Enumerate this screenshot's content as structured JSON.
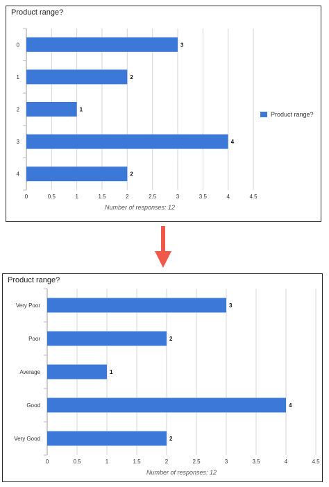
{
  "chart_data": [
    {
      "type": "bar",
      "orientation": "horizontal",
      "title": "Product range?",
      "categories": [
        "0",
        "1",
        "2",
        "3",
        "4"
      ],
      "series": [
        {
          "name": "Product range?",
          "values": [
            3,
            2,
            1,
            4,
            2
          ],
          "color": "#3c78d8"
        }
      ],
      "xlim": [
        0,
        4.5
      ],
      "xticks": [
        "0",
        "0.5",
        "1",
        "1.5",
        "2",
        "2.5",
        "3",
        "3.5",
        "4",
        "4.5"
      ],
      "xlabel": "Number of responses: 12",
      "ylabel": "",
      "grid": true,
      "legend": "right"
    },
    {
      "type": "bar",
      "orientation": "horizontal",
      "title": "Product range?",
      "categories": [
        "Very Poor",
        "Poor",
        "Average",
        "Good",
        "Very Good"
      ],
      "series": [
        {
          "values": [
            3,
            2,
            1,
            4,
            2
          ],
          "color": "#3c78d8"
        }
      ],
      "xlim": [
        0,
        4.5
      ],
      "xticks": [
        "0",
        "0.5",
        "1",
        "1.5",
        "2",
        "2.5",
        "3",
        "3.5",
        "4",
        "4.5"
      ],
      "xlabel": "Number of responses: 12",
      "ylabel": "",
      "grid": true,
      "legend": "none"
    }
  ],
  "arrow": {
    "color": "#f0584a",
    "direction": "down"
  }
}
